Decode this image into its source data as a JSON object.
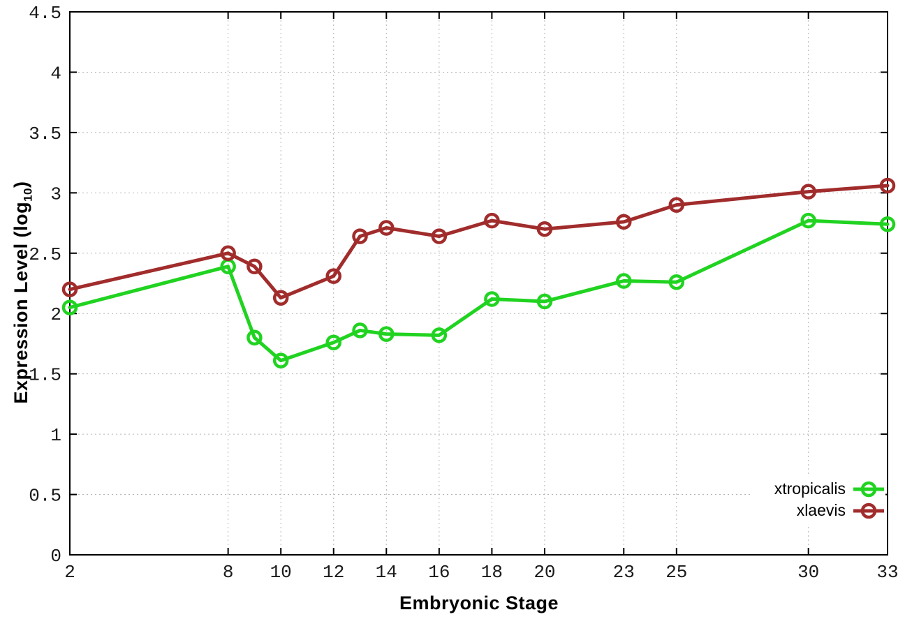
{
  "chart_data": {
    "type": "line",
    "title": "",
    "xlabel": "Embryonic Stage",
    "ylabel": "Expression Level (log10)",
    "ylabel_parts": {
      "main": "Expression Level (log",
      "sub": "10",
      "end": ")"
    },
    "xlim": [
      2,
      33
    ],
    "ylim": [
      0,
      4.5
    ],
    "grid": true,
    "legend_position": "inside bottom right",
    "x": [
      2,
      8,
      9,
      10,
      12,
      13,
      14,
      16,
      18,
      20,
      23,
      25,
      30,
      33
    ],
    "xtick_values": [
      2,
      8,
      10,
      12,
      14,
      16,
      18,
      20,
      23,
      25,
      30,
      33
    ],
    "xtick_labels": [
      "2",
      "8",
      "10",
      "12",
      "14",
      "16",
      "18",
      "20",
      "23",
      "25",
      "30",
      "33"
    ],
    "ytick_values": [
      0,
      0.5,
      1,
      1.5,
      2,
      2.5,
      3,
      3.5,
      4,
      4.5
    ],
    "ytick_labels": [
      "0",
      "0.5",
      "1",
      "1.5",
      "2",
      "2.5",
      "3",
      "3.5",
      "4",
      "4.5"
    ],
    "series": [
      {
        "name": "xtropicalis",
        "color": "#21d321",
        "marker": "open-circle",
        "values": [
          2.05,
          2.39,
          1.8,
          1.61,
          1.76,
          1.86,
          1.83,
          1.82,
          2.12,
          2.1,
          2.27,
          2.26,
          2.77,
          2.74
        ]
      },
      {
        "name": "xlaevis",
        "color": "#a12c2c",
        "marker": "open-circle",
        "values": [
          2.2,
          2.5,
          2.39,
          2.13,
          2.31,
          2.64,
          2.71,
          2.64,
          2.77,
          2.7,
          2.76,
          2.9,
          3.01,
          3.06
        ]
      }
    ]
  },
  "styles": {
    "background": "#ffffff",
    "axis_color": "#000000",
    "grid_color": "#b5b5b5",
    "tick_label_color": "#1a1a1a",
    "text_color": "#000000"
  }
}
